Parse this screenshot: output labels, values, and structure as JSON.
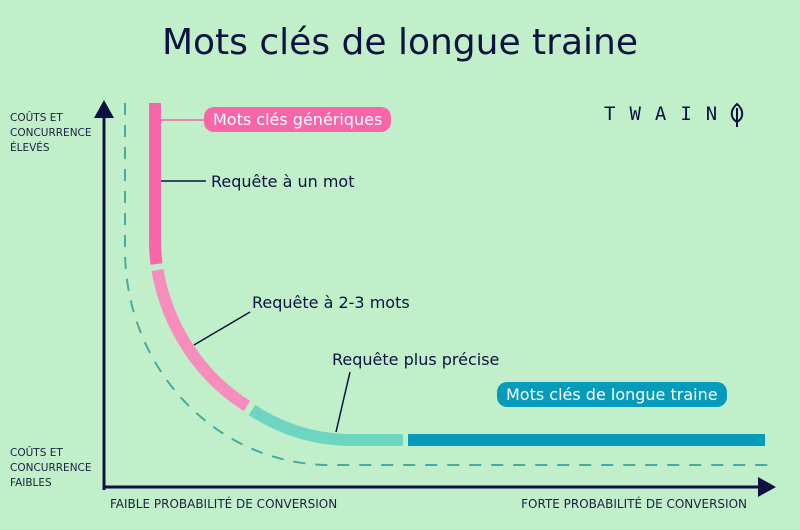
{
  "title": "Mots clés de longue traine",
  "logo": "TWAIN",
  "y_axis": {
    "top_label": "COÛTS ET CONCURRENCE ÉLEVÉS",
    "top_lines": [
      "COÛTS ET",
      "CONCURRENCE",
      "ÉLEVÉS"
    ],
    "bottom_lines": [
      "COÛTS ET",
      "CONCURRENCE",
      "FAIBLES"
    ]
  },
  "x_axis": {
    "left_label": "FAIBLE PROBABILITÉ DE CONVERSION",
    "right_label": "FORTE PROBABILITÉ DE CONVERSION"
  },
  "labels": {
    "generic": "Mots clés génériques",
    "one_word": "Requête à un mot",
    "two_three": "Requête à 2-3 mots",
    "precise": "Requête plus précise",
    "long_tail": "Mots clés de longue traine"
  },
  "colors": {
    "background": "#c0efc9",
    "dark": "#0d1240",
    "pink": "#f865a8",
    "light_pink": "#f78dbd",
    "teal": "#6dd5c0",
    "blue": "#069bbb",
    "dash": "#4aa9a0"
  }
}
